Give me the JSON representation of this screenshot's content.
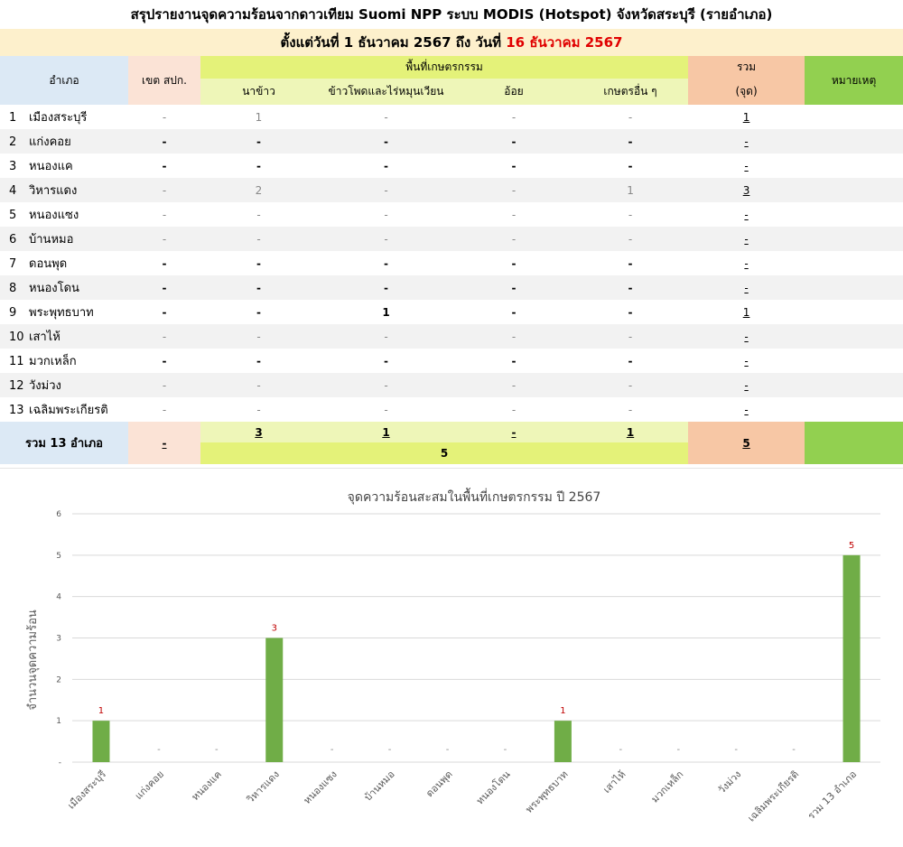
{
  "header": {
    "title": "สรุปรายงานจุดความร้อนจากดาวเทียม Suomi NPP ระบบ MODIS (Hotspot) จังหวัดสระบุรี (รายอำเภอ)",
    "subtitle_prefix": "ตั้งแต่วันที่ 1 ธันวาคม 2567 ถึง วันที่",
    "subtitle_date": "16 ธันวาคม 2567"
  },
  "table": {
    "col_amphoe": "อำเภอ",
    "col_khet": "เขต สปก.",
    "col_agri": "พื้นที่เกษตรกรรม",
    "col_rice": "นาข้าว",
    "col_corn": "ข้าวโพดและไร่หมุนเวียน",
    "col_cane": "อ้อย",
    "col_other": "เกษตรอื่น ๆ",
    "col_sum": "รวม",
    "col_sum_unit": "(จุด)",
    "col_note": "หมายเหตุ",
    "rows": [
      {
        "no": "1",
        "name": "เมืองสระบุรี",
        "khet": "-",
        "rice": "1",
        "corn": "-",
        "cane": "-",
        "other": "-",
        "sum": "1"
      },
      {
        "no": "2",
        "name": "แก่งคอย",
        "khet": "-",
        "rice": "-",
        "corn": "-",
        "cane": "-",
        "other": "-",
        "sum": "-"
      },
      {
        "no": "3",
        "name": "หนองแค",
        "khet": "-",
        "rice": "-",
        "corn": "-",
        "cane": "-",
        "other": "-",
        "sum": "-"
      },
      {
        "no": "4",
        "name": "วิหารแดง",
        "khet": "-",
        "rice": "2",
        "corn": "-",
        "cane": "-",
        "other": "1",
        "sum": "3"
      },
      {
        "no": "5",
        "name": "หนองแซง",
        "khet": "-",
        "rice": "-",
        "corn": "-",
        "cane": "-",
        "other": "-",
        "sum": "-"
      },
      {
        "no": "6",
        "name": "บ้านหมอ",
        "khet": "-",
        "rice": "-",
        "corn": "-",
        "cane": "-",
        "other": "-",
        "sum": "-"
      },
      {
        "no": "7",
        "name": "ดอนพุด",
        "khet": "-",
        "rice": "-",
        "corn": "-",
        "cane": "-",
        "other": "-",
        "sum": "-"
      },
      {
        "no": "8",
        "name": "หนองโดน",
        "khet": "-",
        "rice": "-",
        "corn": "-",
        "cane": "-",
        "other": "-",
        "sum": "-"
      },
      {
        "no": "9",
        "name": "พระพุทธบาท",
        "khet": "-",
        "rice": "-",
        "corn": "1",
        "cane": "-",
        "other": "-",
        "sum": "1"
      },
      {
        "no": "10",
        "name": "เสาไห้",
        "khet": "-",
        "rice": "-",
        "corn": "-",
        "cane": "-",
        "other": "-",
        "sum": "-"
      },
      {
        "no": "11",
        "name": "มวกเหล็ก",
        "khet": "-",
        "rice": "-",
        "corn": "-",
        "cane": "-",
        "other": "-",
        "sum": "-"
      },
      {
        "no": "12",
        "name": "วังม่วง",
        "khet": "-",
        "rice": "-",
        "corn": "-",
        "cane": "-",
        "other": "-",
        "sum": "-"
      },
      {
        "no": "13",
        "name": "เฉลิมพระเกียรติ",
        "khet": "-",
        "rice": "-",
        "corn": "-",
        "cane": "-",
        "other": "-",
        "sum": "-"
      }
    ],
    "total": {
      "label": "รวม 13 อำเภอ",
      "khet": "-",
      "rice": "3",
      "corn": "1",
      "cane": "-",
      "other": "1",
      "agri_total": "5",
      "sum": "5"
    }
  },
  "colors": {
    "bar": "#70ad47",
    "data_label": "#c00000",
    "subtitle_date": "#e00000"
  },
  "chart_data": {
    "type": "bar",
    "title": "จุดความร้อนสะสมในพื้นที่เกษตรกรรม ปี 2567",
    "ylabel": "จำนวนจุดความร้อน",
    "xlabel": "",
    "ylim": [
      0,
      6
    ],
    "yticks": [
      "-",
      "1",
      "2",
      "3",
      "4",
      "5",
      "6"
    ],
    "grid": true,
    "categories": [
      "เมืองสระบุรี",
      "แก่งคอย",
      "หนองแค",
      "วิหารแดง",
      "หนองแซง",
      "บ้านหมอ",
      "ดอนพุด",
      "หนองโดน",
      "พระพุทธบาท",
      "เสาไห้",
      "มวกเหล็ก",
      "วังม่วง",
      "เฉลิมพระเกียรติ",
      "รวม 13 อำเภอ"
    ],
    "values": [
      1,
      0,
      0,
      3,
      0,
      0,
      0,
      0,
      1,
      0,
      0,
      0,
      0,
      5
    ],
    "data_labels": [
      "1",
      "-",
      "-",
      "3",
      "-",
      "-",
      "-",
      "-",
      "1",
      "-",
      "-",
      "-",
      "-",
      "5"
    ]
  }
}
